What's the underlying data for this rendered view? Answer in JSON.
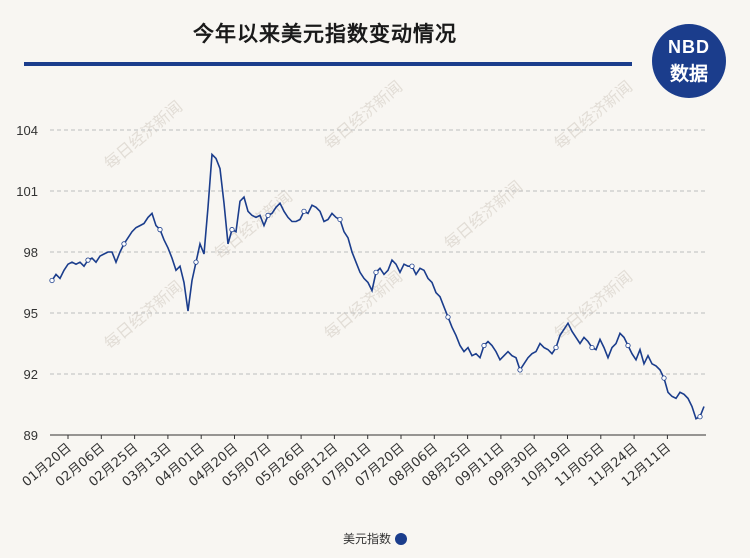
{
  "header": {
    "title": "今年以来美元指数变动情况",
    "logo_top": "NBD",
    "logo_bottom": "数据"
  },
  "watermark_text": "每日经济新闻",
  "colors": {
    "line": "#1b3d8c",
    "rule": "#1b3d8c",
    "grid": "#bdbdbd",
    "text": "#333333"
  },
  "chart_data": {
    "type": "line",
    "title": "今年以来美元指数变动情况",
    "xlabel": "",
    "ylabel": "",
    "ylim": [
      89,
      104
    ],
    "yticks": [
      89,
      92,
      95,
      98,
      101,
      104
    ],
    "x_tick_labels": [
      "01月20日",
      "02月06日",
      "02月25日",
      "03月13日",
      "04月01日",
      "04月20日",
      "05月07日",
      "05月26日",
      "06月12日",
      "07月01日",
      "07月20日",
      "08月06日",
      "08月25日",
      "09月11日",
      "09月30日",
      "10月19日",
      "11月05日",
      "11月24日",
      "12月11日"
    ],
    "grid": "horizontal-dashed",
    "legend": "bottom",
    "series": [
      {
        "name": "美元指数",
        "values": [
          96.6,
          96.9,
          96.7,
          97.1,
          97.4,
          97.5,
          97.4,
          97.5,
          97.3,
          97.6,
          97.7,
          97.5,
          97.8,
          97.9,
          98.0,
          98.0,
          97.5,
          98.0,
          98.4,
          98.7,
          99.0,
          99.2,
          99.3,
          99.4,
          99.7,
          99.9,
          99.3,
          99.1,
          98.6,
          98.2,
          97.7,
          97.1,
          97.3,
          96.5,
          95.1,
          96.6,
          97.5,
          98.4,
          97.9,
          100.2,
          102.8,
          102.6,
          102.1,
          100.4,
          98.4,
          99.1,
          99.0,
          100.5,
          100.7,
          100.0,
          99.8,
          99.7,
          99.8,
          99.3,
          99.8,
          99.9,
          100.2,
          100.4,
          100.0,
          99.7,
          99.5,
          99.5,
          99.6,
          100.0,
          99.9,
          100.3,
          100.2,
          100.0,
          99.5,
          99.6,
          99.9,
          99.7,
          99.6,
          99.0,
          98.7,
          98.0,
          97.5,
          97.0,
          96.7,
          96.5,
          96.1,
          97.0,
          97.2,
          96.9,
          97.1,
          97.6,
          97.4,
          97.0,
          97.4,
          97.3,
          97.3,
          96.9,
          97.2,
          97.1,
          96.7,
          96.5,
          96.0,
          95.8,
          95.3,
          94.8,
          94.3,
          93.9,
          93.4,
          93.1,
          93.3,
          92.9,
          93.0,
          92.8,
          93.4,
          93.6,
          93.4,
          93.1,
          92.7,
          92.9,
          93.1,
          92.9,
          92.8,
          92.2,
          92.5,
          92.8,
          93.0,
          93.1,
          93.5,
          93.3,
          93.2,
          93.0,
          93.3,
          93.9,
          94.2,
          94.5,
          94.1,
          93.8,
          93.5,
          93.8,
          93.6,
          93.3,
          93.2,
          93.7,
          93.3,
          92.8,
          93.3,
          93.5,
          94.0,
          93.8,
          93.4,
          93.0,
          92.7,
          93.2,
          92.5,
          92.9,
          92.5,
          92.4,
          92.2,
          91.8,
          91.1,
          90.9,
          90.8,
          91.1,
          91.0,
          90.8,
          90.4,
          89.8,
          89.9,
          90.4
        ]
      }
    ]
  }
}
